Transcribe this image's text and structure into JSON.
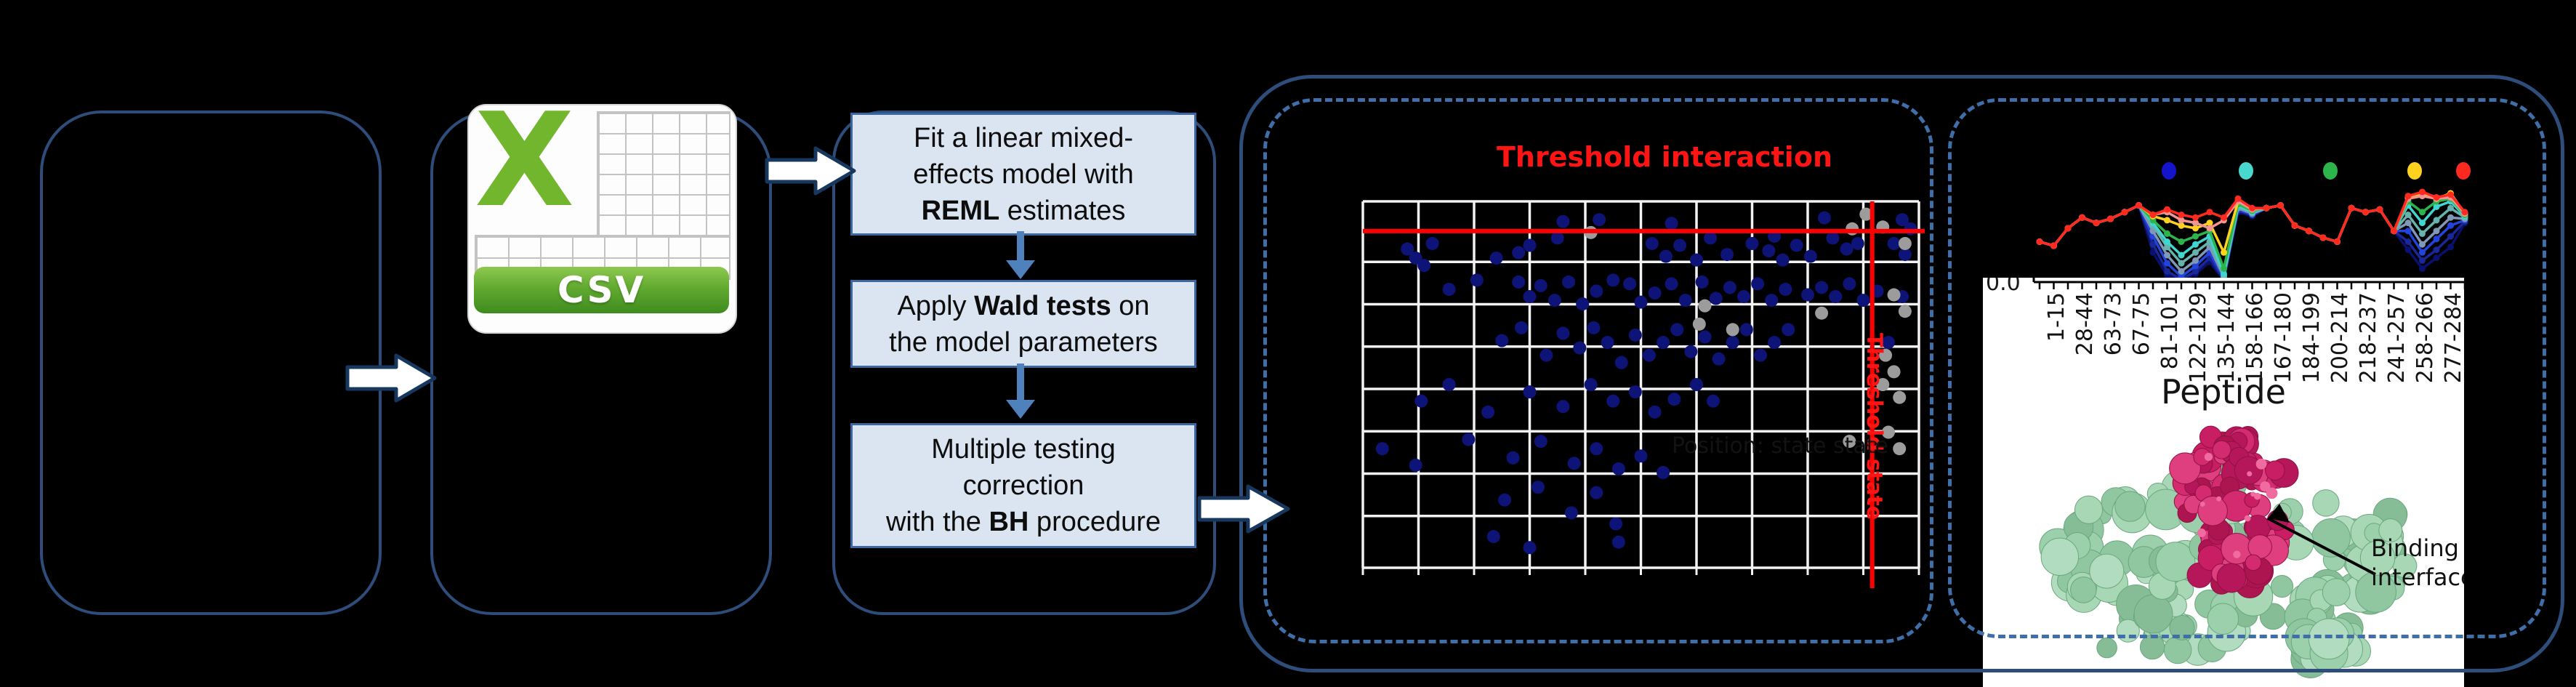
{
  "csv": {
    "label": "CSV",
    "x_glyph": "X",
    "brand_green": "#71b62c",
    "banner_green": "#62aa31"
  },
  "pipeline": {
    "steps": [
      {
        "lines": [
          [
            {
              "text": "Fit a linear mixed-",
              "bold": false
            }
          ],
          [
            {
              "text": "effects model with",
              "bold": false
            }
          ],
          [
            {
              "text": "REML",
              "bold": true
            },
            {
              "text": " estimates",
              "bold": false
            }
          ]
        ]
      },
      {
        "lines": [
          [
            {
              "text": "Apply ",
              "bold": false
            },
            {
              "text": "Wald tests",
              "bold": true
            },
            {
              "text": " on",
              "bold": false
            }
          ],
          [
            {
              "text": "the model parameters",
              "bold": false
            }
          ]
        ]
      },
      {
        "lines": [
          [
            {
              "text": "Multiple testing",
              "bold": false
            }
          ],
          [
            {
              "text": "correction",
              "bold": false
            }
          ],
          [
            {
              "text": "with the ",
              "bold": false
            },
            {
              "text": "BH",
              "bold": true
            },
            {
              "text": " procedure",
              "bold": false
            }
          ]
        ]
      }
    ]
  },
  "scatter": {
    "title": "Threshold interaction",
    "threshold_state_label": "Threshold state",
    "hidden_x_label": "Position: state state",
    "threshold_color": "#ff0000",
    "blue_dot_color": "#0e1378",
    "grey_dot_color": "#9c9c9c",
    "grid_color": "#f2f2f2"
  },
  "profiles": {
    "y_tick": "0.0",
    "xlabel": "Peptide",
    "legend_dot_colors": [
      "#1414cc",
      "#49d8d0",
      "#2db54b",
      "#ffd21f",
      "#ff2a1f"
    ],
    "categories": [
      "1-15",
      "28-44",
      "63-73",
      "67-75",
      "81-101",
      "122-129",
      "135-144",
      "158-166",
      "167-180",
      "184-199",
      "200-214",
      "218-237",
      "241-257",
      "258-266",
      "277-284"
    ]
  },
  "protein": {
    "annotation_line1": "Binding",
    "annotation_line2": "interface",
    "surface_green": "#9ccfab",
    "interface_pink": "#c91e63"
  },
  "chart_data": [
    {
      "type": "scatter",
      "title": "Threshold interaction",
      "note": "axes unlabeled in image (tick text not visible); coordinates given as fractions of plot area, x 0=left..1=right, y 0=top..1=bottom",
      "threshold_interaction_y_frac": 0.081,
      "threshold_state_x_frac": 0.916,
      "points_blue": [
        [
          0.36,
          0.055
        ],
        [
          0.425,
          0.05
        ],
        [
          0.555,
          0.06
        ],
        [
          0.83,
          0.045
        ],
        [
          0.97,
          0.05
        ],
        [
          0.985,
          0.075
        ],
        [
          0.08,
          0.13
        ],
        [
          0.095,
          0.155
        ],
        [
          0.11,
          0.175
        ],
        [
          0.125,
          0.115
        ],
        [
          0.3,
          0.12
        ],
        [
          0.35,
          0.1
        ],
        [
          0.24,
          0.155
        ],
        [
          0.28,
          0.14
        ],
        [
          0.52,
          0.115
        ],
        [
          0.545,
          0.15
        ],
        [
          0.57,
          0.12
        ],
        [
          0.6,
          0.16
        ],
        [
          0.625,
          0.1
        ],
        [
          0.655,
          0.145
        ],
        [
          0.7,
          0.115
        ],
        [
          0.73,
          0.135
        ],
        [
          0.755,
          0.16
        ],
        [
          0.78,
          0.12
        ],
        [
          0.805,
          0.15
        ],
        [
          0.845,
          0.1
        ],
        [
          0.87,
          0.13
        ],
        [
          0.89,
          0.115
        ],
        [
          0.955,
          0.115
        ],
        [
          0.975,
          0.145
        ],
        [
          0.74,
          0.095
        ],
        [
          0.155,
          0.24
        ],
        [
          0.205,
          0.215
        ],
        [
          0.28,
          0.22
        ],
        [
          0.3,
          0.26
        ],
        [
          0.32,
          0.23
        ],
        [
          0.345,
          0.27
        ],
        [
          0.37,
          0.22
        ],
        [
          0.395,
          0.28
        ],
        [
          0.42,
          0.245
        ],
        [
          0.45,
          0.215
        ],
        [
          0.48,
          0.225
        ],
        [
          0.5,
          0.275
        ],
        [
          0.525,
          0.25
        ],
        [
          0.555,
          0.225
        ],
        [
          0.58,
          0.27
        ],
        [
          0.61,
          0.22
        ],
        [
          0.635,
          0.265
        ],
        [
          0.66,
          0.235
        ],
        [
          0.685,
          0.26
        ],
        [
          0.71,
          0.225
        ],
        [
          0.735,
          0.27
        ],
        [
          0.76,
          0.24
        ],
        [
          0.8,
          0.255
        ],
        [
          0.825,
          0.235
        ],
        [
          0.85,
          0.26
        ],
        [
          0.875,
          0.225
        ],
        [
          0.9,
          0.27
        ],
        [
          0.925,
          0.245
        ],
        [
          0.97,
          0.26
        ],
        [
          0.25,
          0.38
        ],
        [
          0.285,
          0.345
        ],
        [
          0.33,
          0.42
        ],
        [
          0.36,
          0.36
        ],
        [
          0.39,
          0.4
        ],
        [
          0.415,
          0.345
        ],
        [
          0.44,
          0.385
        ],
        [
          0.465,
          0.44
        ],
        [
          0.49,
          0.365
        ],
        [
          0.515,
          0.42
        ],
        [
          0.54,
          0.385
        ],
        [
          0.565,
          0.35
        ],
        [
          0.59,
          0.41
        ],
        [
          0.615,
          0.37
        ],
        [
          0.64,
          0.43
        ],
        [
          0.665,
          0.385
        ],
        [
          0.69,
          0.35
        ],
        [
          0.715,
          0.42
        ],
        [
          0.74,
          0.385
        ],
        [
          0.765,
          0.35
        ],
        [
          0.945,
          0.385
        ],
        [
          0.105,
          0.545
        ],
        [
          0.155,
          0.5
        ],
        [
          0.225,
          0.575
        ],
        [
          0.3,
          0.52
        ],
        [
          0.36,
          0.56
        ],
        [
          0.41,
          0.5
        ],
        [
          0.45,
          0.545
        ],
        [
          0.49,
          0.52
        ],
        [
          0.525,
          0.575
        ],
        [
          0.56,
          0.54
        ],
        [
          0.6,
          0.5
        ],
        [
          0.63,
          0.545
        ],
        [
          0.035,
          0.675
        ],
        [
          0.095,
          0.72
        ],
        [
          0.19,
          0.65
        ],
        [
          0.27,
          0.7
        ],
        [
          0.32,
          0.655
        ],
        [
          0.38,
          0.715
        ],
        [
          0.42,
          0.675
        ],
        [
          0.46,
          0.73
        ],
        [
          0.5,
          0.695
        ],
        [
          0.54,
          0.74
        ],
        [
          0.255,
          0.815
        ],
        [
          0.315,
          0.78
        ],
        [
          0.375,
          0.85
        ],
        [
          0.42,
          0.795
        ],
        [
          0.455,
          0.88
        ],
        [
          0.235,
          0.915
        ],
        [
          0.46,
          0.93
        ],
        [
          0.3,
          0.945
        ]
      ],
      "points_grey": [
        [
          0.905,
          0.035
        ],
        [
          0.935,
          0.07
        ],
        [
          0.975,
          0.115
        ],
        [
          0.615,
          0.285
        ],
        [
          0.605,
          0.335
        ],
        [
          0.665,
          0.35
        ],
        [
          0.825,
          0.305
        ],
        [
          0.955,
          0.255
        ],
        [
          0.975,
          0.3
        ],
        [
          0.94,
          0.42
        ],
        [
          0.955,
          0.465
        ],
        [
          0.935,
          0.5
        ],
        [
          0.965,
          0.535
        ],
        [
          0.945,
          0.63
        ],
        [
          0.965,
          0.675
        ],
        [
          0.875,
          0.655
        ],
        [
          0.41,
          0.085
        ],
        [
          0.88,
          0.075
        ]
      ]
    },
    {
      "type": "line",
      "xlabel": "Peptide",
      "ylabel": "",
      "y_origin_tick": "0.0",
      "note": "relative deuterium uptake profiles; values are fractions of plot height (31 x positions, every other tick labeled)",
      "categories": [
        "1-15",
        "28-44",
        "63-73",
        "67-75",
        "81-101",
        "122-129",
        "135-144",
        "158-166",
        "167-180",
        "184-199",
        "200-214",
        "218-237",
        "241-257",
        "258-266",
        "277-284"
      ],
      "series": [
        {
          "name": "navy-dark",
          "color": "#0a1070",
          "values": [
            0.3,
            0.27,
            0.4,
            0.48,
            0.44,
            0.47,
            0.52,
            0.57,
            0.22,
            0.05,
            0.01,
            0.06,
            0.15,
            0.015,
            0.52,
            0.49,
            0.55,
            0.57,
            0.42,
            0.38,
            0.33,
            0.3,
            0.55,
            0.52,
            0.54,
            0.38,
            0.24,
            0.1,
            0.18,
            0.26,
            0.44
          ]
        },
        {
          "name": "navy",
          "color": "#1a2798",
          "values": [
            0.3,
            0.27,
            0.4,
            0.48,
            0.44,
            0.47,
            0.52,
            0.57,
            0.28,
            0.08,
            0.02,
            0.08,
            0.18,
            0.02,
            0.53,
            0.5,
            0.55,
            0.57,
            0.42,
            0.38,
            0.33,
            0.3,
            0.55,
            0.52,
            0.54,
            0.38,
            0.3,
            0.16,
            0.24,
            0.34,
            0.45
          ]
        },
        {
          "name": "blue",
          "color": "#2244dd",
          "values": [
            0.3,
            0.27,
            0.4,
            0.48,
            0.44,
            0.47,
            0.52,
            0.57,
            0.34,
            0.14,
            0.04,
            0.12,
            0.22,
            0.03,
            0.54,
            0.5,
            0.55,
            0.57,
            0.42,
            0.38,
            0.33,
            0.3,
            0.55,
            0.52,
            0.54,
            0.38,
            0.38,
            0.22,
            0.32,
            0.42,
            0.46
          ]
        },
        {
          "name": "steel-blue",
          "color": "#8097b6",
          "values": [
            0.3,
            0.27,
            0.4,
            0.48,
            0.44,
            0.47,
            0.52,
            0.57,
            0.38,
            0.2,
            0.08,
            0.16,
            0.26,
            0.04,
            0.55,
            0.51,
            0.55,
            0.57,
            0.42,
            0.38,
            0.33,
            0.3,
            0.55,
            0.52,
            0.54,
            0.38,
            0.44,
            0.28,
            0.38,
            0.48,
            0.47
          ]
        },
        {
          "name": "teal",
          "color": "#66b2ad",
          "values": [
            0.3,
            0.27,
            0.4,
            0.48,
            0.44,
            0.47,
            0.52,
            0.57,
            0.42,
            0.26,
            0.14,
            0.22,
            0.3,
            0.05,
            0.56,
            0.52,
            0.55,
            0.57,
            0.42,
            0.38,
            0.33,
            0.3,
            0.55,
            0.52,
            0.54,
            0.38,
            0.5,
            0.36,
            0.46,
            0.55,
            0.48
          ]
        },
        {
          "name": "cyan",
          "color": "#3fd6d2",
          "values": [
            0.3,
            0.27,
            0.4,
            0.48,
            0.44,
            0.47,
            0.52,
            0.57,
            0.44,
            0.3,
            0.2,
            0.28,
            0.34,
            0.06,
            0.57,
            0.52,
            0.55,
            0.57,
            0.42,
            0.38,
            0.33,
            0.3,
            0.55,
            0.52,
            0.54,
            0.38,
            0.57,
            0.44,
            0.56,
            0.6,
            0.49
          ]
        },
        {
          "name": "green",
          "color": "#2db54b",
          "values": [
            0.3,
            0.27,
            0.4,
            0.48,
            0.44,
            0.47,
            0.52,
            0.57,
            0.46,
            0.36,
            0.3,
            0.34,
            0.38,
            0.1,
            0.58,
            0.53,
            0.55,
            0.57,
            0.42,
            0.38,
            0.33,
            0.3,
            0.55,
            0.52,
            0.54,
            0.38,
            0.6,
            0.52,
            0.6,
            0.62,
            0.5
          ]
        },
        {
          "name": "yellow",
          "color": "#ffd21f",
          "values": [
            0.3,
            0.27,
            0.4,
            0.48,
            0.44,
            0.47,
            0.52,
            0.57,
            0.49,
            0.46,
            0.42,
            0.4,
            0.44,
            0.22,
            0.6,
            0.54,
            0.55,
            0.57,
            0.42,
            0.38,
            0.33,
            0.3,
            0.55,
            0.52,
            0.54,
            0.38,
            0.63,
            0.65,
            0.62,
            0.66,
            0.51
          ]
        },
        {
          "name": "salmon",
          "color": "#f29490",
          "values": [
            0.3,
            0.27,
            0.4,
            0.48,
            0.44,
            0.47,
            0.52,
            0.57,
            0.5,
            0.52,
            0.46,
            0.44,
            0.4,
            0.46,
            0.6,
            0.54,
            0.55,
            0.57,
            0.42,
            0.38,
            0.33,
            0.3,
            0.55,
            0.52,
            0.54,
            0.38,
            0.62,
            0.64,
            0.62,
            0.63,
            0.51
          ]
        },
        {
          "name": "red",
          "color": "#ff2a1f",
          "values": [
            0.3,
            0.27,
            0.4,
            0.48,
            0.44,
            0.47,
            0.52,
            0.57,
            0.5,
            0.54,
            0.5,
            0.48,
            0.52,
            0.48,
            0.62,
            0.55,
            0.55,
            0.57,
            0.42,
            0.38,
            0.33,
            0.3,
            0.55,
            0.52,
            0.54,
            0.38,
            0.64,
            0.67,
            0.63,
            0.65,
            0.52
          ]
        }
      ],
      "legend_position": "top",
      "legend_dot_colors": [
        "#1414cc",
        "#49d8d0",
        "#2db54b",
        "#ffd21f",
        "#ff2a1f"
      ]
    }
  ]
}
